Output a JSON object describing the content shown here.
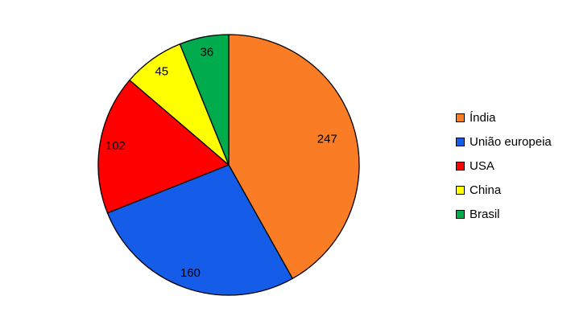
{
  "chart_data": {
    "type": "pie",
    "title": "",
    "slices": [
      {
        "label": "Índia",
        "value": 247,
        "color": "#FA7D26"
      },
      {
        "label": "União europeia",
        "value": 160,
        "color": "#155CE8"
      },
      {
        "label": "USA",
        "value": 102,
        "color": "#FE0000"
      },
      {
        "label": "China",
        "value": 45,
        "color": "#FFFF00"
      },
      {
        "label": "Brasil",
        "value": 36,
        "color": "#00AB4E"
      }
    ],
    "start_angle_deg": 0,
    "direction": "clockwise",
    "legend_position": "right",
    "data_labels": "values-inside",
    "outline_color": "#000000",
    "background_color": "#FFFFFF",
    "label_text_color": "#000000"
  }
}
